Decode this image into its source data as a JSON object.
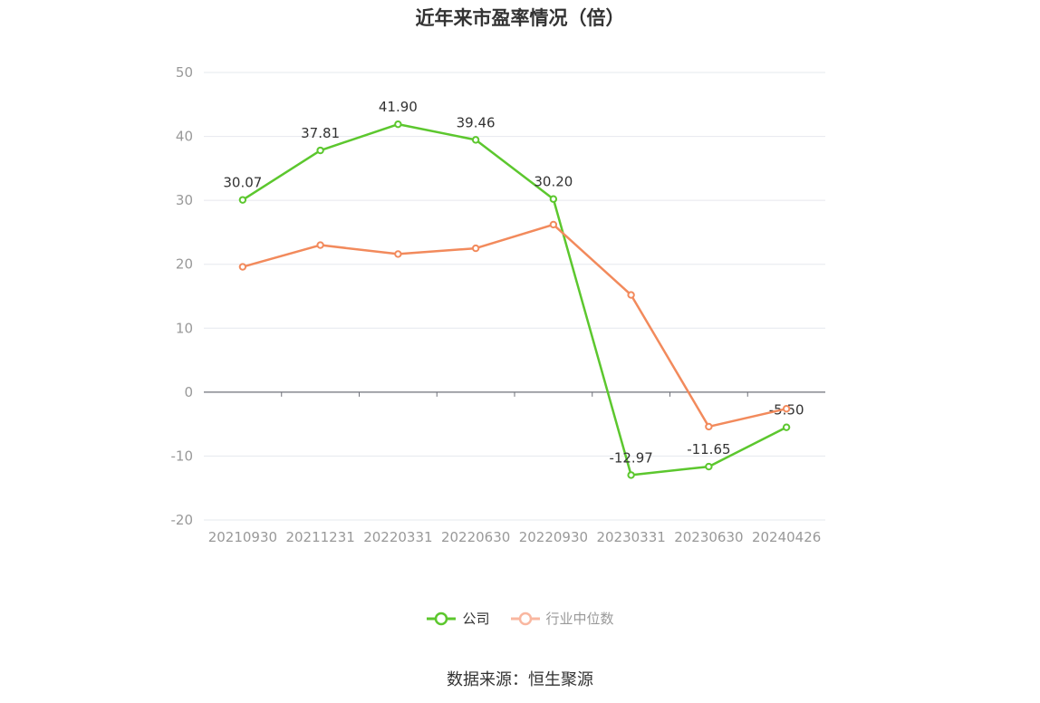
{
  "chart_data": {
    "type": "line",
    "title": "近年来市盈率情况（倍）",
    "categories": [
      "20210930",
      "20211231",
      "20220331",
      "20220630",
      "20220930",
      "20230331",
      "20230630",
      "20240426"
    ],
    "series": [
      {
        "name": "公司",
        "color": "#5cc72e",
        "values": [
          30.07,
          37.81,
          41.9,
          39.46,
          30.2,
          -12.97,
          -11.65,
          -5.5
        ],
        "labels": [
          "30.07",
          "37.81",
          "41.90",
          "39.46",
          "30.20",
          "-12.97",
          "-11.65",
          "-5.50"
        ]
      },
      {
        "name": "行业中位数",
        "color": "#f28a5c",
        "values": [
          19.6,
          23.0,
          21.6,
          22.5,
          26.2,
          15.2,
          -5.4,
          -2.6
        ]
      }
    ],
    "ylim": [
      -20,
      50
    ],
    "yticks": [
      -20,
      -10,
      0,
      10,
      20,
      30,
      40,
      50
    ],
    "grid": true,
    "legend_position": "bottom"
  },
  "legend": {
    "inactive_color": "#f9b7a0"
  },
  "source": "数据来源：恒生聚源"
}
